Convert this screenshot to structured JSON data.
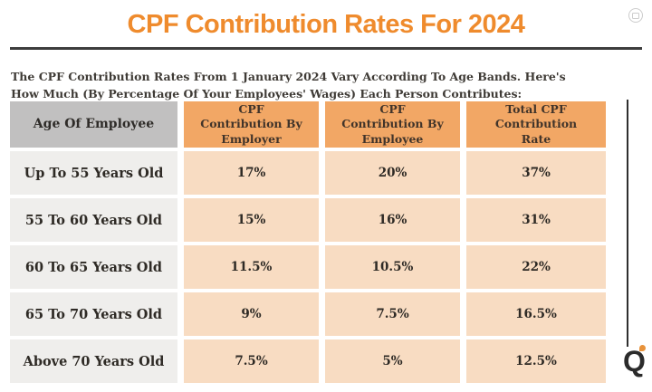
{
  "header": {
    "title": "CPF Contribution Rates For 2024",
    "subtitle": "The CPF Contribution Rates From 1 January 2024 Vary According To Age Bands. Here's How Much (By Percentage Of Your Employees' Wages) Each Person Contributes:"
  },
  "colors": {
    "accent_orange": "#EF8B2D",
    "header_cell_orange": "#F2A765",
    "header_cell_gray": "#C1C0C0",
    "data_cell_peach": "#F8DCC2",
    "data_cell_gray": "#EFEEEC",
    "divider_dark": "#3D3D3D",
    "text_dark": "#2E2A25"
  },
  "icons": {
    "watermark": "badge-icon",
    "logo_letter": "Q"
  },
  "chart_data": {
    "type": "table",
    "title": "CPF Contribution Rates For 2024",
    "columns": [
      "Age Of Employee",
      "CPF Contribution By Employer",
      "CPF Contribution By Employee",
      "Total CPF Contribution Rate"
    ],
    "rows": [
      [
        "Up To 55 Years Old",
        "17%",
        "20%",
        "37%"
      ],
      [
        "55 To 60 Years Old",
        "15%",
        "16%",
        "31%"
      ],
      [
        "60 To 65 Years Old",
        "11.5%",
        "10.5%",
        "22%"
      ],
      [
        "65 To 70 Years Old",
        "9%",
        "7.5%",
        "16.5%"
      ],
      [
        "Above 70 Years Old",
        "7.5%",
        "5%",
        "12.5%"
      ]
    ]
  }
}
